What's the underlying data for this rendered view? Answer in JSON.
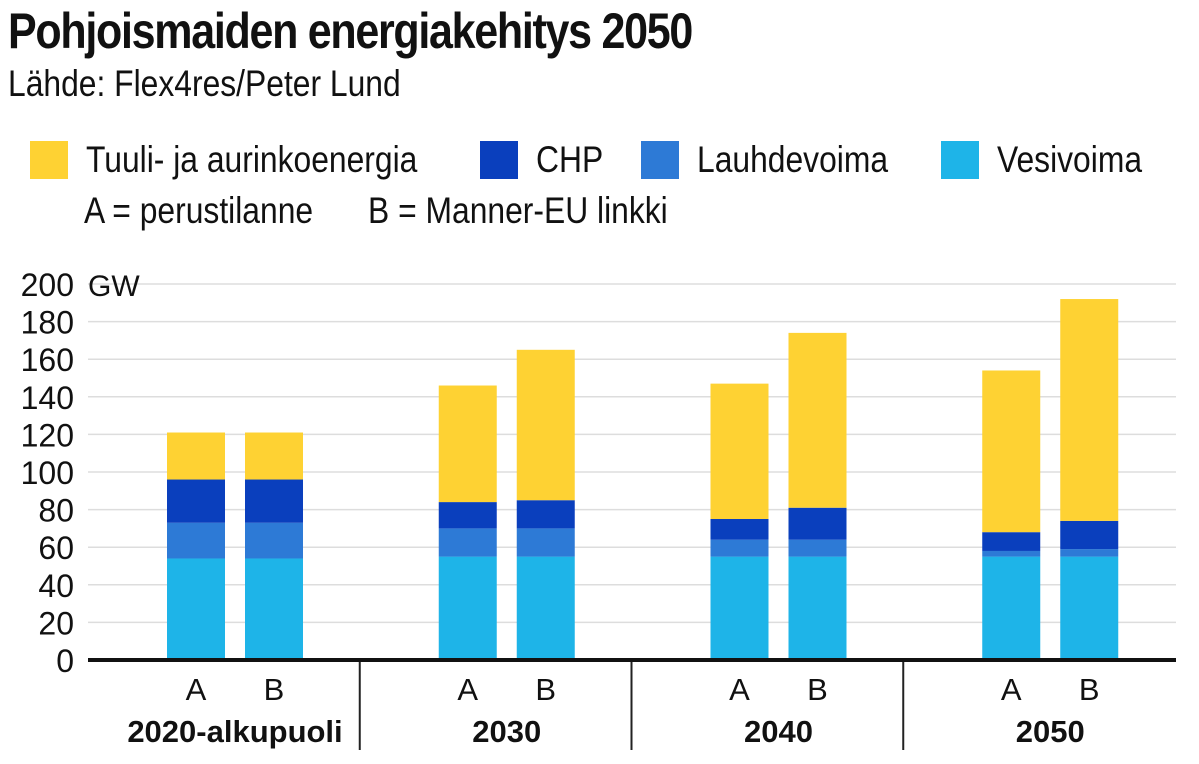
{
  "header": {
    "title": "Pohjoismaiden energiakehitys 2050",
    "source": "Lähde:  Flex4res/Peter Lund"
  },
  "legend": {
    "items": [
      {
        "key": "wind_solar",
        "label": "Tuuli- ja aurinkoenergia",
        "color": "#fed233"
      },
      {
        "key": "chp",
        "label": "CHP",
        "color": "#0a3fbd"
      },
      {
        "key": "condensing",
        "label": "Lauhdevoima",
        "color": "#2d7ad6"
      },
      {
        "key": "hydro",
        "label": "Vesivoima",
        "color": "#1eb4e8"
      }
    ],
    "note_a": "A = perustilanne",
    "note_b": "B = Manner-EU linkki"
  },
  "chart_data": {
    "type": "bar",
    "stacked": true,
    "unit": "GW",
    "ylim": [
      0,
      200
    ],
    "yticks": [
      0,
      20,
      40,
      60,
      80,
      100,
      120,
      140,
      160,
      180,
      200
    ],
    "grid": true,
    "groups": [
      "2020-alkupuoli",
      "2030",
      "2040",
      "2050"
    ],
    "subcategories": [
      "A",
      "B",
      "A",
      "B",
      "A",
      "B",
      "A",
      "B"
    ],
    "series": [
      {
        "name": "Vesivoima",
        "color": "#1eb4e8",
        "values": [
          54,
          54,
          55,
          55,
          55,
          55,
          55,
          55
        ]
      },
      {
        "name": "Lauhdevoima",
        "color": "#2d7ad6",
        "values": [
          19,
          19,
          15,
          15,
          9,
          9,
          3,
          4
        ]
      },
      {
        "name": "CHP",
        "color": "#0a3fbd",
        "values": [
          23,
          23,
          14,
          15,
          11,
          17,
          10,
          15
        ]
      },
      {
        "name": "Tuuli- ja aurinkoenergia",
        "color": "#fed233",
        "values": [
          25,
          25,
          62,
          80,
          72,
          93,
          86,
          118
        ]
      }
    ]
  }
}
